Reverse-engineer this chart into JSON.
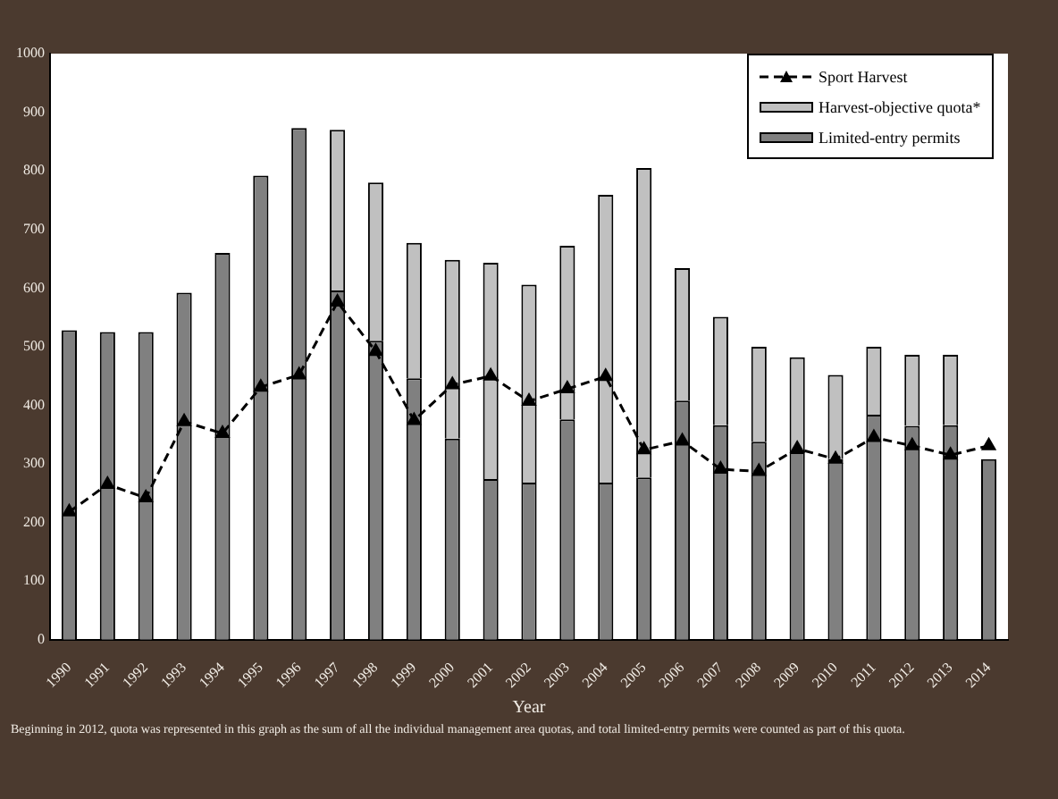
{
  "chart_data": {
    "type": "bar",
    "stacked": true,
    "xlabel": "Year",
    "categories": [
      "1990",
      "1991",
      "1992",
      "1993",
      "1994",
      "1995",
      "1996",
      "1997",
      "1998",
      "1999",
      "2000",
      "2001",
      "2002",
      "2003",
      "2004",
      "2005",
      "2006",
      "2007",
      "2008",
      "2009",
      "2010",
      "2011",
      "2012",
      "2013",
      "2014"
    ],
    "series": [
      {
        "name": "Limited-entry permits",
        "color": "#808080",
        "values": [
          528,
          525,
          525,
          592,
          660,
          792,
          873,
          596,
          510,
          446,
          343,
          274,
          268,
          376,
          268,
          277,
          408,
          366,
          338,
          320,
          308,
          384,
          365,
          366,
          308
        ]
      },
      {
        "name": "Harvest-objective quota*",
        "color": "#c0c0c0",
        "values": [
          null,
          null,
          null,
          null,
          null,
          null,
          null,
          274,
          270,
          231,
          305,
          369,
          338,
          296,
          491,
          528,
          226,
          185,
          162,
          162,
          144,
          116,
          121,
          120,
          null
        ]
      },
      {
        "name": "Sport Harvest",
        "type": "line",
        "color": "#000000",
        "marker": "triangle",
        "line_style": "dashed",
        "values": [
          218,
          265,
          242,
          372,
          352,
          431,
          452,
          576,
          492,
          374,
          435,
          450,
          407,
          428,
          449,
          324,
          339,
          291,
          287,
          326,
          308,
          345,
          331,
          315,
          331
        ]
      }
    ],
    "ylim": [
      0,
      1000
    ],
    "yticks": [
      0,
      100,
      200,
      300,
      400,
      500,
      600,
      700,
      800,
      900,
      1000
    ],
    "grid": false,
    "legend": "top right",
    "annotations": [
      "Beginning in 2012, quota was represented in this graph as the sum of all the individual management area quotas, and total limited-entry permits were counted as part of this quota."
    ]
  }
}
